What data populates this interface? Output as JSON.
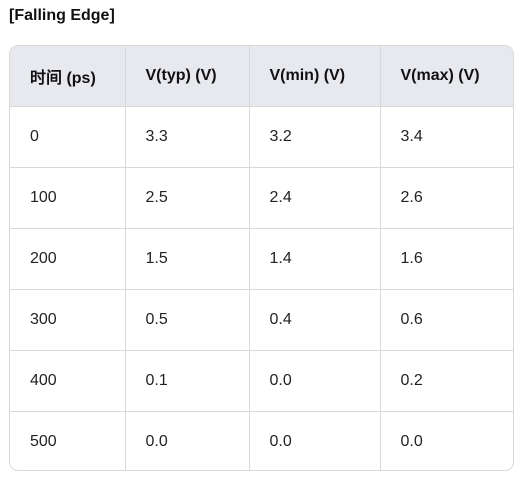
{
  "title": "[Falling Edge]",
  "table": {
    "headers": [
      "时间 (ps)",
      "V(typ) (V)",
      "V(min) (V)",
      "V(max) (V)"
    ],
    "rows": [
      [
        "0",
        "3.3",
        "3.2",
        "3.4"
      ],
      [
        "100",
        "2.5",
        "2.4",
        "2.6"
      ],
      [
        "200",
        "1.5",
        "1.4",
        "1.6"
      ],
      [
        "300",
        "0.5",
        "0.4",
        "0.6"
      ],
      [
        "400",
        "0.1",
        "0.0",
        "0.2"
      ],
      [
        "500",
        "0.0",
        "0.0",
        "0.0"
      ]
    ]
  }
}
